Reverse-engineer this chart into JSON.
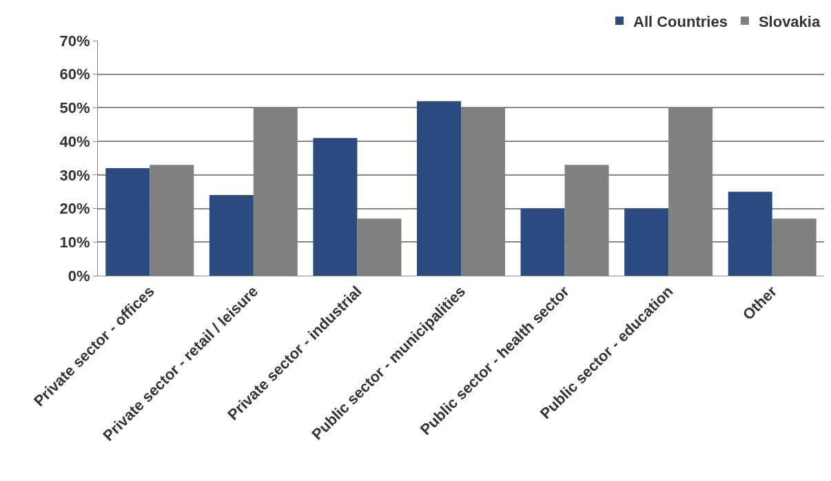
{
  "chart_data": {
    "type": "bar",
    "categories": [
      "Private sector - offices",
      "Private sector - retail / leisure",
      "Private sector - industrial",
      "Public sector - municipalities",
      "Public sector - health sector",
      "Public sector - education",
      "Other"
    ],
    "series": [
      {
        "name": "All Countries",
        "color": "#2a4a80",
        "values": [
          32,
          24,
          41,
          52,
          20,
          20,
          25
        ]
      },
      {
        "name": "Slovakia",
        "color": "#808080",
        "values": [
          33,
          50,
          17,
          50,
          33,
          50,
          17
        ]
      }
    ],
    "ylim": [
      0,
      70
    ],
    "yticks": [
      {
        "value": 0,
        "label": "0%"
      },
      {
        "value": 10,
        "label": "10%"
      },
      {
        "value": 20,
        "label": "20%"
      },
      {
        "value": 30,
        "label": "30%"
      },
      {
        "value": 40,
        "label": "40%"
      },
      {
        "value": 50,
        "label": "50%"
      },
      {
        "value": 60,
        "label": "60%"
      },
      {
        "value": 70,
        "label": "70%"
      }
    ],
    "grid": "y",
    "legend": "top right"
  }
}
